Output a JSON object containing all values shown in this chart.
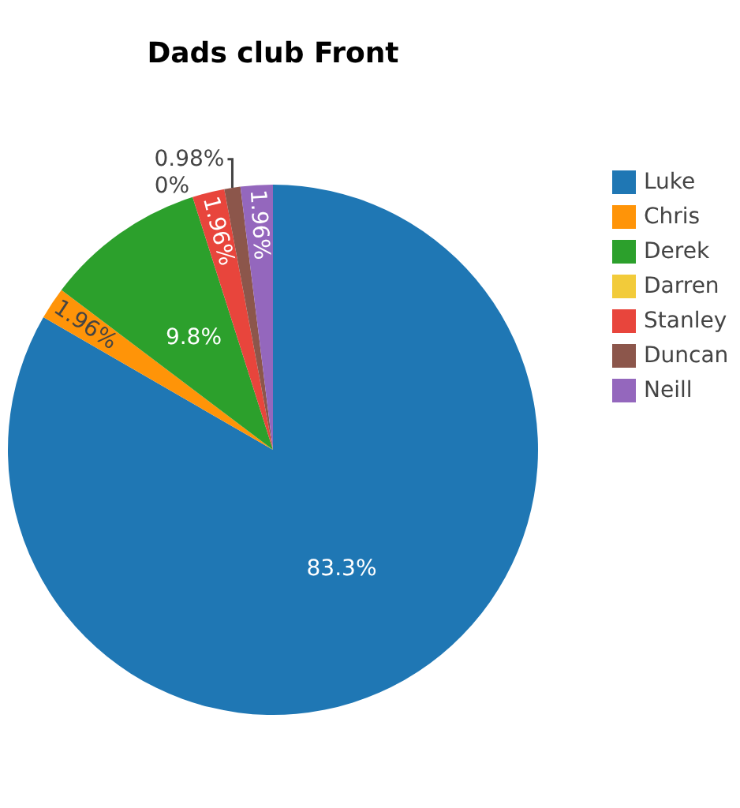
{
  "chart_data": {
    "type": "pie",
    "title": "Dads club Front",
    "categories": [
      "Luke",
      "Chris",
      "Derek",
      "Darren",
      "Stanley",
      "Duncan",
      "Neill"
    ],
    "values": [
      83.3,
      1.96,
      9.8,
      0,
      1.96,
      0.98,
      1.96
    ],
    "colors": [
      "#1f77b4",
      "#ff9408",
      "#2ca02c",
      "#f2cb3a",
      "#e8453c",
      "#8c564b",
      "#9467bd"
    ],
    "value_labels": [
      "83.3%",
      "1.96%",
      "9.8%",
      "0%",
      "1.96%",
      "0.98%",
      "1.96%"
    ],
    "legend": "top right"
  }
}
